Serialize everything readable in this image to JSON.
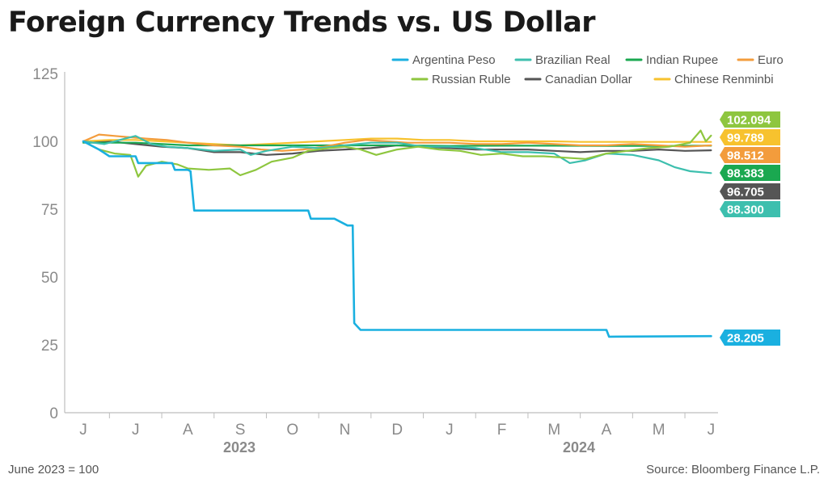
{
  "title": "Foreign Currency Trends vs. US Dollar",
  "note": "June 2023 = 100",
  "source": "Source: Bloomberg Finance L.P.",
  "chart_data": {
    "type": "line",
    "ylim": [
      0,
      125
    ],
    "yticks": [
      "0",
      "25",
      "50",
      "75",
      "100",
      "125"
    ],
    "months": [
      "J",
      "J",
      "A",
      "S",
      "O",
      "N",
      "D",
      "J",
      "F",
      "M",
      "A",
      "M",
      "J"
    ],
    "years": [
      "2023",
      "2024"
    ],
    "series": [
      {
        "name": "Argentina Peso",
        "color": "#1ab0e0",
        "end_label": "28.205",
        "x": [
          0,
          0.3,
          0.5,
          1.0,
          1.05,
          1.7,
          1.75,
          2.0,
          2.05,
          2.12,
          4.3,
          4.35,
          4.8,
          5.05,
          5.15,
          5.18,
          5.3,
          10.0,
          10.05,
          12.0
        ],
        "y": [
          100,
          97,
          94.5,
          94.5,
          92,
          92,
          89.5,
          89.5,
          89,
          74.5,
          74.5,
          71.5,
          71.5,
          69,
          69,
          33,
          30.5,
          30.5,
          28,
          28.2
        ]
      },
      {
        "name": "Brazilian Real",
        "color": "#3dbfae",
        "end_label": "88.300",
        "x": [
          0,
          0.4,
          0.8,
          1.0,
          1.3,
          1.6,
          2.0,
          2.5,
          3.0,
          3.2,
          3.5,
          4.0,
          4.5,
          5.0,
          5.5,
          6.0,
          6.5,
          7.0,
          7.5,
          8.0,
          8.5,
          9.0,
          9.3,
          9.6,
          10.0,
          10.5,
          11.0,
          11.3,
          11.6,
          12.0
        ],
        "y": [
          100,
          99,
          101,
          102,
          99,
          98,
          97.5,
          96.5,
          97,
          95,
          96.5,
          98,
          97.5,
          98.5,
          99.5,
          99.5,
          98,
          98,
          97.5,
          96,
          96,
          95.5,
          92,
          93,
          95.5,
          95,
          93,
          90.5,
          89,
          88.3
        ]
      },
      {
        "name": "Indian Rupee",
        "color": "#1aa850",
        "x": [
          0,
          1,
          2,
          3,
          4,
          5,
          6,
          7,
          8,
          9,
          10,
          11,
          12
        ],
        "y": [
          99.5,
          99.5,
          98.5,
          98.5,
          98.5,
          98.5,
          98.5,
          98.3,
          98.4,
          98.4,
          98.3,
          98.3,
          98.4
        ]
      },
      {
        "name": "Euro",
        "color": "#f39c3c",
        "end_label": "98.512",
        "x": [
          0,
          0.3,
          0.6,
          0.9,
          1.2,
          1.6,
          2.0,
          2.5,
          3.0,
          3.4,
          3.8,
          4.2,
          4.6,
          5.0,
          5.4,
          5.8,
          6.2,
          6.6,
          7.0,
          7.5,
          8.0,
          8.5,
          9.0,
          9.5,
          10.0,
          10.5,
          11.0,
          11.5,
          12.0
        ],
        "y": [
          100,
          102.5,
          102,
          101.5,
          101,
          100.5,
          99.5,
          98.5,
          98,
          97,
          96.5,
          97,
          98,
          99.5,
          100.5,
          100,
          99.5,
          99.5,
          99.5,
          99,
          99,
          99.5,
          99,
          98.5,
          98.5,
          99,
          98.5,
          98,
          98.5
        ]
      },
      {
        "name": "Russian Ruble",
        "color": "#8ec63f",
        "end_label": "102.094",
        "x": [
          0,
          0.3,
          0.6,
          0.9,
          1.05,
          1.2,
          1.5,
          1.8,
          2.0,
          2.4,
          2.8,
          3.0,
          3.3,
          3.6,
          4.0,
          4.3,
          4.7,
          5.0,
          5.3,
          5.6,
          6.0,
          6.4,
          6.8,
          7.2,
          7.6,
          8.0,
          8.4,
          8.8,
          9.2,
          9.6,
          10.0,
          10.4,
          10.8,
          11.2,
          11.6,
          11.8,
          11.9,
          12.0
        ],
        "y": [
          100,
          97,
          95.5,
          95,
          87,
          91,
          92.5,
          91.5,
          90,
          89.5,
          90,
          87.5,
          89.5,
          92.5,
          94,
          96.5,
          97.5,
          98,
          97,
          95,
          97,
          98,
          97,
          96.5,
          95,
          95.5,
          94.5,
          94.5,
          94,
          93.5,
          95.5,
          96.5,
          97.5,
          98,
          99.5,
          104,
          100,
          102.1
        ]
      },
      {
        "name": "Canadian Dollar",
        "color": "#555555",
        "end_label": "96.705",
        "x": [
          0,
          0.5,
          1.0,
          1.5,
          2.0,
          2.5,
          3.0,
          3.5,
          4.0,
          4.5,
          5.0,
          5.5,
          6.0,
          6.5,
          7.0,
          7.5,
          8.0,
          8.5,
          9.0,
          9.5,
          10.0,
          10.5,
          11.0,
          11.5,
          12.0
        ],
        "y": [
          100,
          100,
          99,
          98,
          97.5,
          96,
          96,
          95,
          95.5,
          96.5,
          97,
          97.5,
          98.5,
          98,
          97.5,
          97,
          97,
          97,
          96.5,
          96,
          96.5,
          96.5,
          97,
          96.5,
          96.7
        ]
      },
      {
        "name": "Chinese Renminbi",
        "color": "#f7c22e",
        "end_label": "99.789",
        "x": [
          0,
          0.5,
          1.0,
          1.5,
          2.0,
          2.5,
          3.0,
          3.5,
          4.0,
          4.5,
          5.0,
          5.5,
          6.0,
          6.5,
          7.0,
          7.5,
          8.0,
          8.5,
          9.0,
          9.5,
          10.0,
          10.5,
          11.0,
          11.5,
          12.0
        ],
        "y": [
          100,
          100.5,
          100.5,
          100,
          99.5,
          99,
          98.5,
          99,
          99.5,
          100,
          100.5,
          101,
          101,
          100.5,
          100.5,
          100,
          100,
          100,
          100,
          99.8,
          99.8,
          99.8,
          99.8,
          99.8,
          99.8
        ]
      }
    ],
    "end_labels": [
      {
        "text": "102.094",
        "color": "#8ec63f"
      },
      {
        "text": "99.789",
        "color": "#f7c22e"
      },
      {
        "text": "98.512",
        "color": "#f39c3c"
      },
      {
        "text": "98.383",
        "color": "#1aa850"
      },
      {
        "text": "96.705",
        "color": "#555555"
      },
      {
        "text": "88.300",
        "color": "#3dbfae"
      },
      {
        "text": "28.205",
        "color": "#1ab0e0"
      }
    ]
  }
}
